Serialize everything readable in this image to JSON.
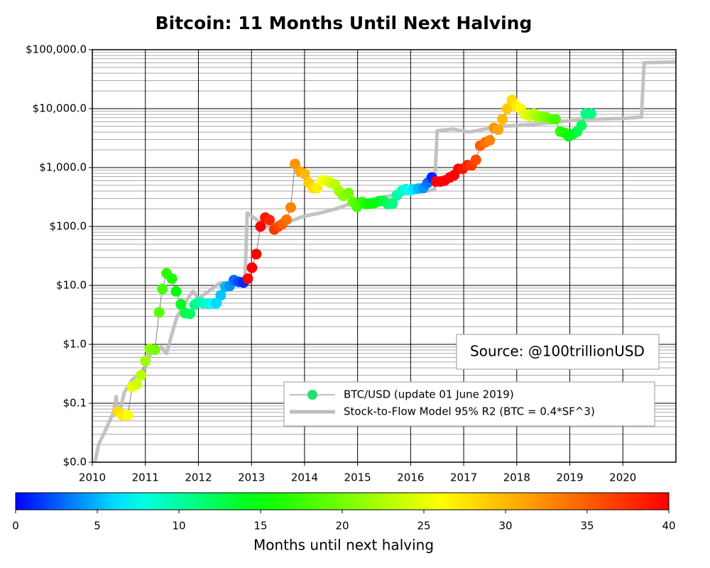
{
  "chart_data": {
    "type": "scatter",
    "title": "Bitcoin: 11 Months Until Next Halving",
    "yscale": "log",
    "ylim": [
      0.01,
      100000
    ],
    "yticks": [
      {
        "value": 0.01,
        "label": "$0.0"
      },
      {
        "value": 0.1,
        "label": "$0.1"
      },
      {
        "value": 1,
        "label": "$1.0"
      },
      {
        "value": 10,
        "label": "$10.0"
      },
      {
        "value": 100,
        "label": "$100.0"
      },
      {
        "value": 1000,
        "label": "$1,000.0"
      },
      {
        "value": 10000,
        "label": "$10,000.0"
      },
      {
        "value": 100000,
        "label": "$100,000.0"
      }
    ],
    "xlim": [
      2010,
      2021
    ],
    "xticks": [
      2010,
      2011,
      2012,
      2013,
      2014,
      2015,
      2016,
      2017,
      2018,
      2019,
      2020
    ],
    "grid": true,
    "legend": "lower right",
    "annotation": "Source: @100trillionUSD",
    "series": [
      {
        "name": "BTC/USD (update 01 June 2019)",
        "line_color": "#808080",
        "x": [
          2010.48,
          2010.56,
          2010.67,
          2010.75,
          2010.84,
          2010.92,
          2011.0,
          2011.08,
          2011.18,
          2011.26,
          2011.32,
          2011.4,
          2011.5,
          2011.58,
          2011.67,
          2011.75,
          2011.84,
          2011.93,
          2012.0,
          2012.09,
          2012.18,
          2012.26,
          2012.34,
          2012.42,
          2012.51,
          2012.59,
          2012.67,
          2012.76,
          2012.85,
          2012.93,
          2013.01,
          2013.09,
          2013.17,
          2013.26,
          2013.34,
          2013.43,
          2013.51,
          2013.58,
          2013.66,
          2013.74,
          2013.82,
          2013.92,
          2014.0,
          2014.08,
          2014.16,
          2014.24,
          2014.33,
          2014.41,
          2014.49,
          2014.57,
          2014.65,
          2014.73,
          2014.83,
          2014.91,
          2014.99,
          2015.08,
          2015.16,
          2015.24,
          2015.32,
          2015.41,
          2015.49,
          2015.57,
          2015.66,
          2015.74,
          2015.83,
          2015.91,
          2015.99,
          2016.07,
          2016.15,
          2016.24,
          2016.32,
          2016.4,
          2016.48,
          2016.56,
          2016.64,
          2016.74,
          2016.82,
          2016.9,
          2016.98,
          2017.07,
          2017.15,
          2017.23,
          2017.31,
          2017.41,
          2017.49,
          2017.57,
          2017.65,
          2017.73,
          2017.82,
          2017.91,
          2017.99,
          2018.07,
          2018.16,
          2018.24,
          2018.32,
          2018.4,
          2018.48,
          2018.57,
          2018.65,
          2018.73,
          2018.82,
          2018.9,
          2018.98,
          2019.06,
          2019.14,
          2019.22,
          2019.3,
          2019.4
        ],
        "values": [
          0.072,
          0.063,
          0.063,
          0.19,
          0.21,
          0.3,
          0.52,
          0.84,
          0.81,
          3.5,
          8.7,
          16,
          13,
          7.9,
          4.8,
          3.4,
          3.3,
          4.7,
          5.2,
          5.0,
          4.9,
          4.9,
          5.0,
          6.8,
          9.5,
          9.8,
          12.3,
          11.5,
          11.2,
          13,
          20,
          34,
          100,
          141,
          129,
          89,
          100,
          110,
          130,
          210,
          1150,
          850,
          780,
          550,
          450,
          450,
          600,
          600,
          550,
          520,
          400,
          330,
          370,
          260,
          215,
          260,
          240,
          245,
          250,
          270,
          270,
          240,
          245,
          340,
          400,
          430,
          410,
          430,
          440,
          450,
          550,
          680,
          580,
          580,
          600,
          680,
          740,
          950,
          950,
          1100,
          1090,
          1350,
          2350,
          2700,
          2900,
          4700,
          4400,
          6600,
          10000,
          14000,
          11000,
          10000,
          8000,
          7600,
          8200,
          7100,
          7400,
          7100,
          6600,
          6600,
          4100,
          3900,
          3400,
          3700,
          4100,
          5200,
          8200,
          8200
        ],
        "months": [
          28,
          27,
          26,
          25,
          24,
          23,
          22,
          21,
          20,
          19,
          18,
          17,
          16,
          15,
          14,
          13,
          12,
          11,
          10,
          9,
          8,
          7,
          6,
          5.5,
          5,
          4,
          3,
          2,
          1,
          40,
          40,
          40,
          40,
          39,
          38,
          37,
          36,
          35,
          34,
          33,
          32,
          31,
          30,
          29,
          28,
          27,
          26,
          25,
          24,
          23,
          22,
          21,
          20,
          19,
          18,
          17,
          16,
          15,
          14.5,
          14,
          13,
          12,
          11,
          10,
          9,
          8,
          7,
          6,
          5,
          4,
          3,
          1,
          40,
          40,
          40,
          40,
          40,
          40,
          39,
          38,
          37,
          36,
          35,
          34,
          33,
          32,
          31,
          30,
          29,
          28,
          27,
          26,
          25,
          24,
          23,
          22,
          21,
          20,
          19,
          18,
          17,
          16,
          15,
          14,
          13,
          12,
          11,
          11
        ]
      },
      {
        "name": "Stock-to-Flow Model 95% R2 (BTC = 0.4*SF^3)",
        "color": "#bdbdbd",
        "x": [
          2010.05,
          2010.12,
          2010.25,
          2010.4,
          2010.45,
          2010.5,
          2010.6,
          2010.75,
          2010.85,
          2011.0,
          2011.1,
          2011.3,
          2011.4,
          2011.5,
          2011.6,
          2011.8,
          2011.9,
          2012.0,
          2012.2,
          2012.4,
          2012.6,
          2012.8,
          2012.88,
          2012.92,
          2013.1,
          2013.3,
          2013.5,
          2013.7,
          2013.9,
          2014.0,
          2014.3,
          2014.6,
          2014.9,
          2015.2,
          2015.5,
          2015.8,
          2016.1,
          2016.45,
          2016.5,
          2016.8,
          2017.1,
          2017.4,
          2017.7,
          2018.0,
          2018.4,
          2018.8,
          2019.2,
          2020.0,
          2020.35,
          2020.4,
          2021.0
        ],
        "values": [
          0.01,
          0.02,
          0.035,
          0.07,
          0.13,
          0.06,
          0.15,
          0.25,
          0.3,
          0.4,
          0.7,
          0.9,
          0.7,
          1.5,
          3,
          6,
          8,
          6,
          8,
          11,
          11,
          12,
          14,
          170,
          130,
          100,
          110,
          120,
          140,
          150,
          170,
          200,
          250,
          280,
          320,
          350,
          380,
          420,
          4200,
          4500,
          4000,
          4500,
          5000,
          5200,
          5500,
          6000,
          6500,
          6800,
          7200,
          60000,
          62000
        ]
      }
    ],
    "colorbar": {
      "label": "Months until next halving",
      "lim": [
        0,
        40
      ],
      "ticks": [
        0,
        5,
        10,
        15,
        20,
        25,
        30,
        35,
        40
      ]
    }
  }
}
